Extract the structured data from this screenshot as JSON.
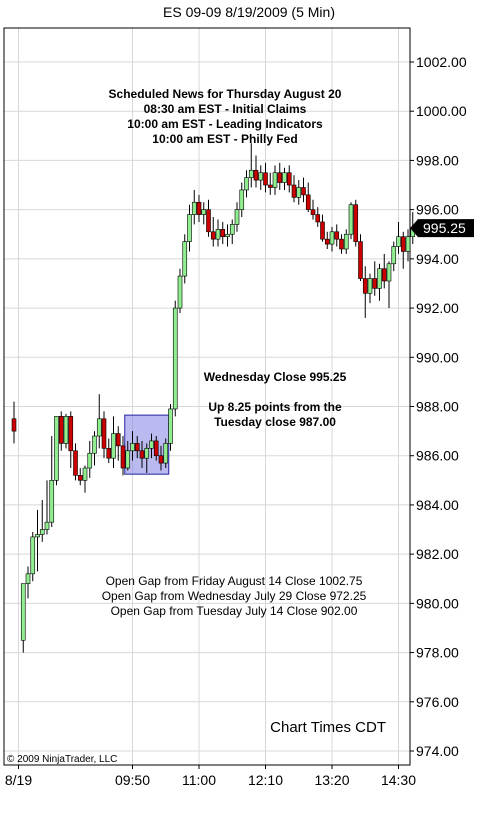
{
  "chart_data": {
    "type": "candlestick",
    "title": "ES 09-09  8/19/2009 (5 Min)",
    "ylim": [
      973.5,
      1003.5
    ],
    "y_ticks": [
      "974.00",
      "976.00",
      "978.00",
      "980.00",
      "982.00",
      "984.00",
      "986.00",
      "988.00",
      "990.00",
      "992.00",
      "994.00",
      "996.00",
      "998.00",
      "1000.00",
      "1002.00"
    ],
    "y_tick_values": [
      974,
      976,
      978,
      980,
      982,
      984,
      986,
      988,
      990,
      992,
      994,
      996,
      998,
      1000,
      1002
    ],
    "x_ticks": [
      {
        "label": "8/19",
        "index": 0
      },
      {
        "label": "09:50",
        "index": 24
      },
      {
        "label": "11:00",
        "index": 38
      },
      {
        "label": "12:10",
        "index": 52
      },
      {
        "label": "13:20",
        "index": 66
      },
      {
        "label": "14:30",
        "index": 80
      }
    ],
    "last_price_label": "995.25",
    "last_price_value": 995.25,
    "gridlines": true,
    "candles": [
      {
        "o": 987.5,
        "h": 988.2,
        "l": 986.5,
        "c": 987.0,
        "gap": true
      },
      {
        "o": 978.5,
        "h": 980.8,
        "l": 978.0,
        "c": 980.8
      },
      {
        "o": 980.8,
        "h": 981.5,
        "l": 980.2,
        "c": 981.2
      },
      {
        "o": 981.2,
        "h": 982.9,
        "l": 980.9,
        "c": 982.7
      },
      {
        "o": 982.7,
        "h": 983.8,
        "l": 981.3,
        "c": 982.8
      },
      {
        "o": 982.8,
        "h": 984.2,
        "l": 982.5,
        "c": 983.0
      },
      {
        "o": 983.0,
        "h": 985.0,
        "l": 982.8,
        "c": 983.3
      },
      {
        "o": 983.3,
        "h": 986.8,
        "l": 983.1,
        "c": 985.0
      },
      {
        "o": 985.0,
        "h": 987.5,
        "l": 984.8,
        "c": 987.6
      },
      {
        "o": 987.6,
        "h": 987.8,
        "l": 986.2,
        "c": 986.5
      },
      {
        "o": 986.5,
        "h": 987.7,
        "l": 986.3,
        "c": 987.6
      },
      {
        "o": 987.6,
        "h": 987.8,
        "l": 985.5,
        "c": 986.2
      },
      {
        "o": 986.2,
        "h": 986.5,
        "l": 985.0,
        "c": 985.2
      },
      {
        "o": 985.2,
        "h": 985.5,
        "l": 984.8,
        "c": 985.0
      },
      {
        "o": 985.0,
        "h": 985.6,
        "l": 984.5,
        "c": 985.5
      },
      {
        "o": 985.5,
        "h": 986.6,
        "l": 985.1,
        "c": 986.1
      },
      {
        "o": 986.1,
        "h": 987.0,
        "l": 985.6,
        "c": 986.8
      },
      {
        "o": 986.8,
        "h": 988.5,
        "l": 986.3,
        "c": 987.5
      },
      {
        "o": 987.5,
        "h": 987.8,
        "l": 985.9,
        "c": 986.3
      },
      {
        "o": 986.3,
        "h": 986.7,
        "l": 985.7,
        "c": 985.9
      },
      {
        "o": 985.9,
        "h": 987.6,
        "l": 985.5,
        "c": 986.9
      },
      {
        "o": 986.9,
        "h": 987.2,
        "l": 985.8,
        "c": 986.4
      },
      {
        "o": 986.4,
        "h": 986.8,
        "l": 985.2,
        "c": 985.5
      },
      {
        "o": 985.5,
        "h": 986.6,
        "l": 985.4,
        "c": 986.2
      },
      {
        "o": 986.2,
        "h": 987.0,
        "l": 985.8,
        "c": 986.5
      },
      {
        "o": 986.5,
        "h": 986.8,
        "l": 985.9,
        "c": 986.2
      },
      {
        "o": 986.2,
        "h": 986.6,
        "l": 985.5,
        "c": 985.9
      },
      {
        "o": 985.9,
        "h": 986.5,
        "l": 985.3,
        "c": 986.3
      },
      {
        "o": 986.3,
        "h": 986.9,
        "l": 985.9,
        "c": 986.6
      },
      {
        "o": 986.6,
        "h": 986.8,
        "l": 985.8,
        "c": 986.0
      },
      {
        "o": 986.0,
        "h": 986.4,
        "l": 985.4,
        "c": 985.7
      },
      {
        "o": 985.7,
        "h": 986.7,
        "l": 985.5,
        "c": 986.5
      },
      {
        "o": 986.5,
        "h": 988.1,
        "l": 986.2,
        "c": 987.9
      },
      {
        "o": 987.9,
        "h": 992.3,
        "l": 987.6,
        "c": 992.0
      },
      {
        "o": 992.0,
        "h": 993.6,
        "l": 991.8,
        "c": 993.3
      },
      {
        "o": 993.3,
        "h": 995.0,
        "l": 993.0,
        "c": 994.7
      },
      {
        "o": 994.7,
        "h": 996.2,
        "l": 994.3,
        "c": 995.8
      },
      {
        "o": 995.8,
        "h": 996.8,
        "l": 995.4,
        "c": 996.3
      },
      {
        "o": 996.3,
        "h": 996.6,
        "l": 995.5,
        "c": 995.8
      },
      {
        "o": 995.8,
        "h": 996.3,
        "l": 995.4,
        "c": 996.0
      },
      {
        "o": 996.0,
        "h": 996.4,
        "l": 994.9,
        "c": 995.1
      },
      {
        "o": 995.1,
        "h": 995.7,
        "l": 994.5,
        "c": 994.8
      },
      {
        "o": 994.8,
        "h": 995.6,
        "l": 994.5,
        "c": 995.2
      },
      {
        "o": 995.2,
        "h": 995.5,
        "l": 994.6,
        "c": 994.9
      },
      {
        "o": 994.9,
        "h": 995.4,
        "l": 994.5,
        "c": 995.0
      },
      {
        "o": 995.0,
        "h": 995.6,
        "l": 994.6,
        "c": 995.4
      },
      {
        "o": 995.4,
        "h": 996.3,
        "l": 995.1,
        "c": 996.0
      },
      {
        "o": 996.0,
        "h": 997.1,
        "l": 995.7,
        "c": 996.8
      },
      {
        "o": 996.8,
        "h": 997.6,
        "l": 996.5,
        "c": 997.3
      },
      {
        "o": 997.3,
        "h": 998.7,
        "l": 996.9,
        "c": 997.6
      },
      {
        "o": 997.6,
        "h": 998.2,
        "l": 996.9,
        "c": 997.2
      },
      {
        "o": 997.2,
        "h": 997.8,
        "l": 996.8,
        "c": 997.5
      },
      {
        "o": 997.5,
        "h": 997.9,
        "l": 996.7,
        "c": 997.0
      },
      {
        "o": 997.0,
        "h": 997.5,
        "l": 996.6,
        "c": 996.9
      },
      {
        "o": 996.9,
        "h": 997.8,
        "l": 996.6,
        "c": 997.5
      },
      {
        "o": 997.5,
        "h": 997.9,
        "l": 996.8,
        "c": 997.1
      },
      {
        "o": 997.1,
        "h": 997.7,
        "l": 996.8,
        "c": 997.5
      },
      {
        "o": 997.5,
        "h": 997.8,
        "l": 996.7,
        "c": 997.0
      },
      {
        "o": 997.0,
        "h": 997.4,
        "l": 996.3,
        "c": 996.5
      },
      {
        "o": 996.5,
        "h": 997.2,
        "l": 996.2,
        "c": 996.9
      },
      {
        "o": 996.9,
        "h": 997.3,
        "l": 996.3,
        "c": 996.6
      },
      {
        "o": 996.6,
        "h": 997.1,
        "l": 995.9,
        "c": 996.0
      },
      {
        "o": 996.0,
        "h": 996.4,
        "l": 995.6,
        "c": 995.8
      },
      {
        "o": 995.8,
        "h": 996.1,
        "l": 995.3,
        "c": 995.5
      },
      {
        "o": 995.5,
        "h": 995.8,
        "l": 994.7,
        "c": 994.8
      },
      {
        "o": 994.8,
        "h": 995.1,
        "l": 994.4,
        "c": 994.6
      },
      {
        "o": 994.6,
        "h": 995.3,
        "l": 994.3,
        "c": 995.1
      },
      {
        "o": 995.1,
        "h": 995.4,
        "l": 994.5,
        "c": 994.8
      },
      {
        "o": 994.8,
        "h": 995.0,
        "l": 994.2,
        "c": 994.4
      },
      {
        "o": 994.4,
        "h": 995.2,
        "l": 994.2,
        "c": 995.0
      },
      {
        "o": 995.0,
        "h": 996.3,
        "l": 994.8,
        "c": 996.2
      },
      {
        "o": 996.2,
        "h": 996.4,
        "l": 994.5,
        "c": 994.7
      },
      {
        "o": 994.7,
        "h": 995.0,
        "l": 993.1,
        "c": 993.2
      },
      {
        "o": 993.2,
        "h": 993.7,
        "l": 991.6,
        "c": 992.6
      },
      {
        "o": 992.6,
        "h": 993.4,
        "l": 992.2,
        "c": 993.2
      },
      {
        "o": 993.2,
        "h": 993.9,
        "l": 992.5,
        "c": 992.8
      },
      {
        "o": 992.8,
        "h": 993.8,
        "l": 992.3,
        "c": 993.6
      },
      {
        "o": 993.6,
        "h": 994.2,
        "l": 992.8,
        "c": 993.1
      },
      {
        "o": 993.1,
        "h": 993.9,
        "l": 992.0,
        "c": 993.8
      },
      {
        "o": 993.8,
        "h": 994.7,
        "l": 993.5,
        "c": 994.5
      },
      {
        "o": 994.5,
        "h": 995.5,
        "l": 994.2,
        "c": 994.9
      },
      {
        "o": 994.9,
        "h": 995.1,
        "l": 993.6,
        "c": 994.3
      },
      {
        "o": 994.3,
        "h": 995.2,
        "l": 993.9,
        "c": 994.9
      },
      {
        "o": 994.9,
        "h": 995.9,
        "l": 994.6,
        "c": 995.25
      }
    ],
    "box": {
      "start_index": 23,
      "end_index": 31,
      "y_low": 985.25,
      "y_high": 987.65
    }
  },
  "annotations": {
    "news": [
      "Scheduled News for Thursday August 20",
      "08:30 am EST - Initial Claims",
      "10:00 am EST - Leading Indicators",
      "10:00 am EST - Philly Fed"
    ],
    "close": [
      "Wednesday Close 995.25",
      "Up 8.25 points from the",
      "Tuesday close 987.00"
    ],
    "gaps": [
      "Open Gap from Friday August 14 Close 1002.75",
      "Open Gap from Wednesday July 29 Close 972.25",
      "Open Gap from Tuesday July 14 Close 902.00"
    ],
    "chart_times": "Chart Times CDT",
    "copyright": "© 2009 NinjaTrader, LLC"
  },
  "colors": {
    "up": "#90ee90",
    "down": "#cc0000",
    "box_fill": "#8c8ce6",
    "box_stroke": "#2020a0",
    "grid": "#d8d8d8",
    "label_bg": "#000000"
  }
}
